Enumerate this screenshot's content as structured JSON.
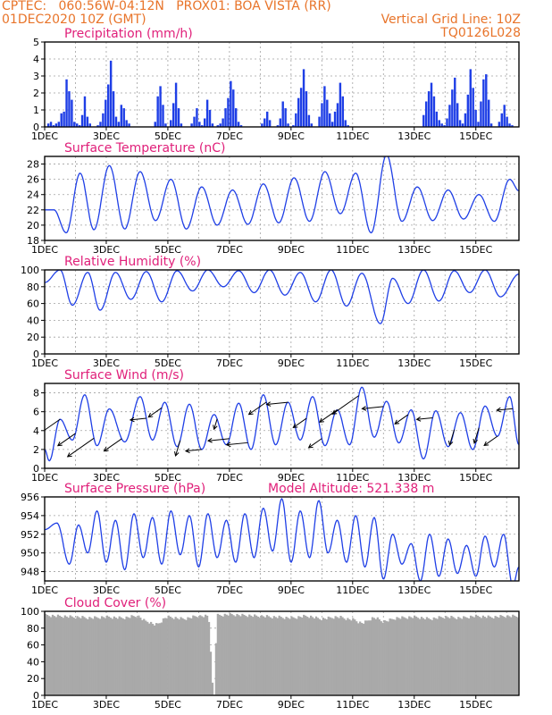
{
  "header": {
    "line1_left": "CPTEC:   060:56W-04:12N   PROX01: BOA VISTA (RR)",
    "line2_left": "01DEC2020 10Z (GMT)",
    "line2_right": "Vertical Grid Line: 10Z",
    "line3_right": "TQ0126L028"
  },
  "colors": {
    "header_text": "#e8742a",
    "panel_title": "#e0207a",
    "series": "#1f3fe6",
    "cloud_fill": "#a9a9a9",
    "grid": "#a0a0a0"
  },
  "chart_data": [
    {
      "type": "bar",
      "title": "Precipitation (mm/h)",
      "xlabel": "",
      "ylabel": "",
      "x_range_days": [
        1,
        16.4
      ],
      "x_ticks": [
        "1DEC",
        "3DEC",
        "5DEC",
        "7DEC",
        "9DEC",
        "11DEC",
        "13DEC",
        "15DEC"
      ],
      "ylim": [
        0,
        5
      ],
      "y_ticks": [
        "0",
        "1",
        "2",
        "3",
        "4",
        "5"
      ],
      "grid": true,
      "values_profile": [
        0,
        0.2,
        0.3,
        0.1,
        0.2,
        0.3,
        0.8,
        0.9,
        2.8,
        2.1,
        1.6,
        0.3,
        0.2,
        0.1,
        0.7,
        1.8,
        0.6,
        0.2,
        0,
        0,
        0.1,
        0.3,
        0.8,
        1.6,
        2.5,
        3.9,
        2.1,
        0.6,
        0.3,
        1.3,
        1.1,
        0.4,
        0.2,
        0,
        0,
        0,
        0,
        0,
        0,
        0,
        0,
        0,
        0.3,
        1.8,
        2.4,
        1.3,
        0.2,
        0,
        0.4,
        1.4,
        2.6,
        1.1,
        0.2,
        0,
        0,
        0,
        0.2,
        0.6,
        1.1,
        0.3,
        0.1,
        0.5,
        1.6,
        1.0,
        0.2,
        0,
        0.1,
        0.2,
        0.5,
        1.1,
        1.7,
        2.7,
        2.2,
        1.1,
        0.3,
        0.1,
        0,
        0,
        0,
        0,
        0,
        0,
        0,
        0.2,
        0.5,
        0.9,
        0.4,
        0,
        0,
        0.1,
        0.5,
        1.5,
        1.1,
        0.2,
        0,
        0.1,
        0.8,
        1.7,
        2.3,
        3.4,
        2.1,
        0.7,
        0.2,
        0,
        0,
        0.6,
        1.4,
        2.4,
        1.6,
        0.8,
        0.3,
        0.9,
        1.4,
        2.6,
        1.8,
        0.4,
        0.1,
        0,
        0,
        0,
        0,
        0,
        0,
        0,
        0,
        0,
        0,
        0,
        0,
        0,
        0,
        0,
        0,
        0,
        0,
        0,
        0,
        0,
        0,
        0,
        0,
        0,
        0,
        0,
        0,
        0.7,
        1.5,
        2.1,
        2.6,
        1.8,
        0.9,
        0.4,
        0.2,
        0.1,
        0.5,
        1.3,
        2.2,
        2.9,
        1.4,
        0.4,
        0.2,
        0.8,
        1.9,
        3.4,
        2.3,
        1.0,
        0.3,
        1.5,
        2.8,
        3.1,
        1.6,
        0.2,
        0,
        0,
        0.3,
        0.8,
        1.3,
        0.6,
        0.2,
        0.1,
        0,
        0
      ],
      "series": [
        {
          "values_ref": "values_profile"
        }
      ]
    },
    {
      "type": "line",
      "title": "Surface Temperature (nC)",
      "xlabel": "",
      "ylabel": "",
      "x_range_days": [
        1,
        16.4
      ],
      "x_ticks": [
        "1DEC",
        "3DEC",
        "5DEC",
        "7DEC",
        "9DEC",
        "11DEC",
        "13DEC",
        "15DEC"
      ],
      "ylim": [
        18,
        29
      ],
      "y_ticks": [
        "18",
        "20",
        "22",
        "24",
        "26",
        "28"
      ],
      "grid": true,
      "daily": {
        "days": [
          1.3,
          1.7,
          2.15,
          2.6,
          3.1,
          3.6,
          4.1,
          4.6,
          5.1,
          5.6,
          6.1,
          6.6,
          7.1,
          7.6,
          8.1,
          8.6,
          9.1,
          9.6,
          10.1,
          10.6,
          11.1,
          11.6,
          12.1,
          12.6,
          13.1,
          13.6,
          14.1,
          14.6,
          15.1,
          15.6,
          16.1,
          16.4
        ],
        "values": [
          22.0,
          19.0,
          26.8,
          19.4,
          27.8,
          19.5,
          27.0,
          20.6,
          26.0,
          19.5,
          25.0,
          20.0,
          24.6,
          20.1,
          25.4,
          20.3,
          26.2,
          20.5,
          27.0,
          21.5,
          26.8,
          19.0,
          29.2,
          20.5,
          25.0,
          20.6,
          24.6,
          20.8,
          24.0,
          20.5,
          26.0,
          24.5
        ]
      },
      "series": [
        {
          "values_ref": "daily"
        }
      ]
    },
    {
      "type": "line",
      "title": "Relative Humidity (%)",
      "xlabel": "",
      "ylabel": "",
      "x_range_days": [
        1,
        16.4
      ],
      "x_ticks": [
        "1DEC",
        "3DEC",
        "5DEC",
        "7DEC",
        "9DEC",
        "11DEC",
        "13DEC",
        "15DEC"
      ],
      "ylim": [
        0,
        100
      ],
      "y_ticks": [
        "0",
        "20",
        "40",
        "60",
        "80",
        "100"
      ],
      "grid": true,
      "daily": {
        "days": [
          1.0,
          1.5,
          1.9,
          2.4,
          2.8,
          3.3,
          3.8,
          4.3,
          4.8,
          5.3,
          5.8,
          6.3,
          6.8,
          7.3,
          7.8,
          8.3,
          8.8,
          9.3,
          9.8,
          10.3,
          10.8,
          11.3,
          11.9,
          12.3,
          12.8,
          13.3,
          13.8,
          14.3,
          14.8,
          15.3,
          15.8,
          16.4
        ],
        "values": [
          85,
          100,
          58,
          97,
          52,
          97,
          65,
          98,
          62,
          99,
          75,
          100,
          80,
          99,
          73,
          100,
          70,
          97,
          62,
          100,
          57,
          96,
          36,
          90,
          60,
          100,
          63,
          99,
          73,
          100,
          68,
          95
        ]
      },
      "series": [
        {
          "values_ref": "daily"
        }
      ]
    },
    {
      "type": "line",
      "title": "Surface Wind (m/s)",
      "xlabel": "",
      "ylabel": "",
      "x_range_days": [
        1,
        16.4
      ],
      "x_ticks": [
        "1DEC",
        "3DEC",
        "5DEC",
        "7DEC",
        "9DEC",
        "11DEC",
        "13DEC",
        "15DEC"
      ],
      "ylim": [
        0,
        9
      ],
      "y_ticks": [
        "0",
        "2",
        "4",
        "6",
        "8"
      ],
      "grid": true,
      "daily": {
        "days": [
          1.0,
          1.15,
          1.5,
          1.9,
          2.3,
          2.7,
          3.1,
          3.6,
          4.1,
          4.5,
          4.9,
          5.3,
          5.7,
          6.1,
          6.5,
          6.9,
          7.3,
          7.7,
          8.1,
          8.5,
          8.9,
          9.3,
          9.7,
          10.1,
          10.5,
          10.9,
          11.3,
          11.7,
          12.1,
          12.5,
          12.9,
          13.3,
          13.7,
          14.1,
          14.5,
          14.9,
          15.3,
          15.7,
          16.1,
          16.4
        ],
        "values": [
          2.0,
          0.8,
          5.2,
          3.0,
          7.8,
          2.4,
          6.3,
          2.8,
          7.6,
          3.0,
          7.0,
          2.3,
          6.8,
          2.0,
          5.7,
          2.5,
          6.9,
          2.0,
          7.8,
          2.5,
          7.0,
          3.0,
          7.6,
          2.4,
          6.2,
          2.5,
          8.6,
          3.3,
          7.1,
          2.7,
          6.2,
          1.0,
          6.1,
          2.3,
          5.9,
          2.0,
          6.6,
          3.4,
          7.6,
          2.5
        ]
      },
      "vectors": [
        {
          "x": 1.5,
          "dir": "sw",
          "len": 5
        },
        {
          "x": 2.0,
          "dir": "sw",
          "len": 4
        },
        {
          "x": 2.6,
          "dir": "sw",
          "len": 6
        },
        {
          "x": 3.5,
          "dir": "sw",
          "len": 4
        },
        {
          "x": 4.3,
          "dir": "w",
          "len": 3
        },
        {
          "x": 4.8,
          "dir": "sw",
          "len": 3
        },
        {
          "x": 5.4,
          "dir": "s",
          "len": 3
        },
        {
          "x": 6.1,
          "dir": "w",
          "len": 3
        },
        {
          "x": 6.6,
          "dir": "s",
          "len": 2
        },
        {
          "x": 7.0,
          "dir": "w",
          "len": 4
        },
        {
          "x": 7.6,
          "dir": "w",
          "len": 4
        },
        {
          "x": 8.2,
          "dir": "sw",
          "len": 4
        },
        {
          "x": 8.9,
          "dir": "w",
          "len": 4
        },
        {
          "x": 9.5,
          "dir": "sw",
          "len": 3
        },
        {
          "x": 10.0,
          "dir": "sw",
          "len": 3
        },
        {
          "x": 10.5,
          "dir": "sw",
          "len": 4
        },
        {
          "x": 11.2,
          "dir": "sw",
          "len": 6
        },
        {
          "x": 12.0,
          "dir": "w",
          "len": 4
        },
        {
          "x": 12.8,
          "dir": "sw",
          "len": 3
        },
        {
          "x": 13.6,
          "dir": "w",
          "len": 3
        },
        {
          "x": 14.3,
          "dir": "s",
          "len": 3
        },
        {
          "x": 15.1,
          "dir": "s",
          "len": 3
        },
        {
          "x": 15.7,
          "dir": "sw",
          "len": 3
        },
        {
          "x": 16.2,
          "dir": "w",
          "len": 3
        }
      ],
      "series": [
        {
          "values_ref": "daily"
        }
      ]
    },
    {
      "type": "line",
      "title": "Surface Pressure (hPa)",
      "annotation": "Model Altitude: 521.338  m",
      "xlabel": "",
      "ylabel": "",
      "x_range_days": [
        1,
        16.4
      ],
      "x_ticks": [
        "1DEC",
        "3DEC",
        "5DEC",
        "7DEC",
        "9DEC",
        "11DEC",
        "13DEC",
        "15DEC"
      ],
      "ylim": [
        947,
        956
      ],
      "y_ticks": [
        "948",
        "950",
        "952",
        "954",
        "956"
      ],
      "grid": true,
      "daily": {
        "days": [
          1.0,
          1.4,
          1.8,
          2.1,
          2.4,
          2.7,
          3.0,
          3.3,
          3.6,
          3.9,
          4.2,
          4.5,
          4.8,
          5.1,
          5.4,
          5.7,
          6.0,
          6.3,
          6.6,
          6.9,
          7.2,
          7.5,
          7.8,
          8.1,
          8.4,
          8.7,
          9.0,
          9.3,
          9.6,
          9.9,
          10.2,
          10.5,
          10.8,
          11.1,
          11.4,
          11.7,
          12.0,
          12.3,
          12.6,
          12.9,
          13.2,
          13.5,
          13.8,
          14.1,
          14.4,
          14.7,
          15.0,
          15.3,
          15.6,
          15.9,
          16.2,
          16.4
        ],
        "values": [
          952.5,
          953.2,
          948.8,
          953.0,
          950.0,
          954.5,
          949.0,
          953.5,
          948.2,
          954.2,
          949.5,
          953.8,
          948.8,
          954.5,
          949.8,
          954.0,
          948.5,
          954.2,
          949.5,
          953.5,
          949.0,
          954.2,
          949.5,
          954.8,
          950.2,
          955.8,
          949.0,
          954.5,
          949.5,
          955.6,
          950.0,
          953.5,
          949.0,
          954.0,
          948.5,
          953.8,
          947.2,
          952.0,
          948.8,
          951.0,
          947.0,
          952.0,
          947.5,
          951.5,
          947.8,
          950.8,
          947.5,
          951.8,
          948.5,
          952.0,
          946.5,
          948.5
        ]
      },
      "series": [
        {
          "values_ref": "daily"
        }
      ]
    },
    {
      "type": "area",
      "title": "Cloud Cover (%)",
      "xlabel": "",
      "ylabel": "",
      "x_range_days": [
        1,
        16.4
      ],
      "x_ticks": [
        "1DEC",
        "3DEC",
        "5DEC",
        "7DEC",
        "9DEC",
        "11DEC",
        "13DEC",
        "15DEC"
      ],
      "ylim": [
        0,
        100
      ],
      "y_ticks": [
        "0",
        "20",
        "40",
        "60",
        "80",
        "100"
      ],
      "grid": true,
      "profile": {
        "days": [
          1.0,
          1.5,
          2.0,
          2.5,
          3.0,
          3.5,
          4.0,
          4.3,
          4.6,
          5.0,
          5.5,
          6.0,
          6.3,
          6.5,
          6.6,
          7.0,
          7.5,
          8.0,
          8.5,
          9.0,
          9.5,
          10.0,
          10.5,
          11.0,
          11.3,
          11.7,
          12.0,
          12.5,
          13.0,
          13.5,
          14.0,
          14.5,
          15.0,
          15.5,
          16.0,
          16.4
        ],
        "values": [
          97,
          96,
          95,
          94,
          95,
          94,
          96,
          90,
          86,
          95,
          93,
          96,
          96,
          0,
          97,
          98,
          97,
          96,
          95,
          94,
          96,
          93,
          95,
          92,
          88,
          94,
          90,
          94,
          95,
          93,
          95,
          94,
          96,
          95,
          96,
          96
        ]
      },
      "series": [
        {
          "values_ref": "profile"
        }
      ]
    }
  ]
}
